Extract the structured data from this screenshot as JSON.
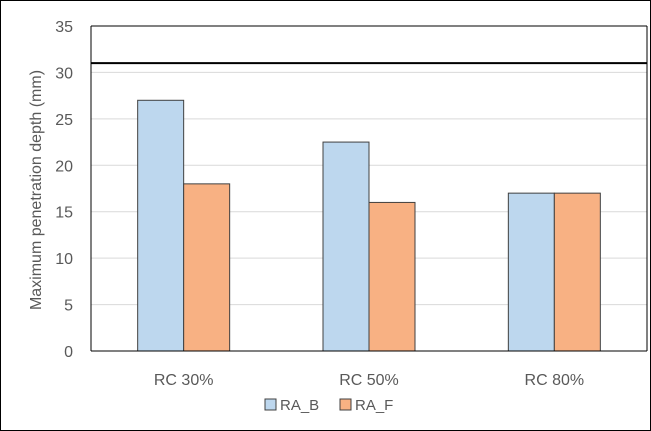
{
  "chart_data": {
    "type": "bar",
    "title": "",
    "xlabel": "",
    "ylabel": "Maximum penetration depth (mm)",
    "categories": [
      "RC 30%",
      "RC 50%",
      "RC 80%"
    ],
    "series": [
      {
        "name": "RA_B",
        "values": [
          27,
          22.5,
          17
        ],
        "color": "#bdd7ee"
      },
      {
        "name": "RA_F",
        "values": [
          18,
          16,
          17
        ],
        "color": "#f8b183"
      }
    ],
    "ylim": [
      0,
      35
    ],
    "yticks": [
      "0",
      "5",
      "10",
      "15",
      "20",
      "25",
      "30",
      "35"
    ],
    "reference_line": {
      "value": 31,
      "color": "#000000"
    },
    "grid": true,
    "legend_position": "bottom",
    "bar_stroke_color": "#404040",
    "grid_color": "#d9d9d9"
  }
}
